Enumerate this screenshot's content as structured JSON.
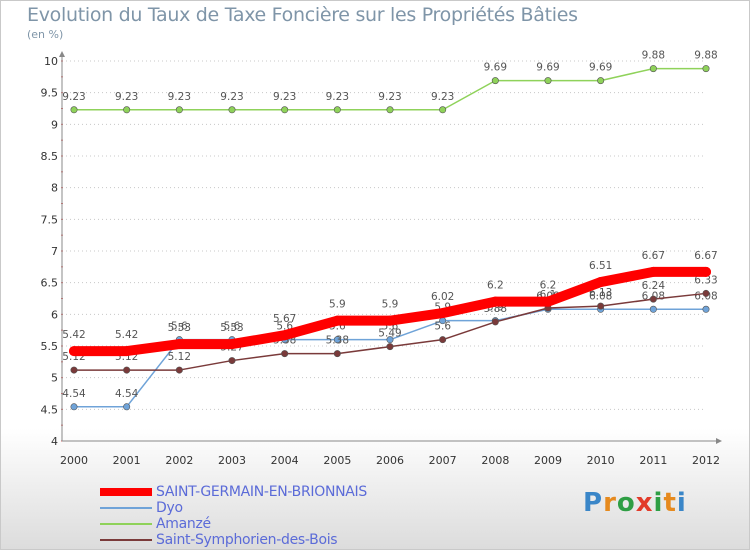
{
  "title": "Evolution du Taux de Taxe Foncière sur les Propriétés Bâties",
  "subtitle": "(en %)",
  "logo": {
    "letters": [
      "P",
      "r",
      "o",
      "x",
      "i",
      "t",
      "i"
    ],
    "colors": [
      "#3a86c8",
      "#e68a1e",
      "#2e9e44",
      "#e23b2a",
      "#2e9e44",
      "#e68a1e",
      "#3a86c8"
    ]
  },
  "chart_data": {
    "type": "line",
    "x": [
      "2000",
      "2001",
      "2002",
      "2003",
      "2004",
      "2005",
      "2006",
      "2007",
      "2008",
      "2009",
      "2010",
      "2011",
      "2012"
    ],
    "ylim": [
      4,
      10
    ],
    "yticks": [
      "4",
      "4.5",
      "5",
      "5.5",
      "6",
      "6.5",
      "7",
      "7.5",
      "8",
      "8.5",
      "9",
      "9.5",
      "10"
    ],
    "grid": "horizontal dotted",
    "legend_position": "bottom-left",
    "series": [
      {
        "name": "Amanzé",
        "color": "#8fd25a",
        "values": [
          9.23,
          9.23,
          9.23,
          9.23,
          9.23,
          9.23,
          9.23,
          9.23,
          9.69,
          9.69,
          9.69,
          9.88,
          9.88
        ],
        "labels": [
          "9.23",
          "9.23",
          "9.23",
          "9.23",
          "9.23",
          "9.23",
          "9.23",
          "9.23",
          "9.69",
          "9.69",
          "9.69",
          "9.88",
          "9.88"
        ]
      },
      {
        "name": "Dyo",
        "color": "#6fa3d8",
        "values": [
          4.54,
          4.54,
          5.6,
          5.6,
          5.6,
          5.6,
          5.6,
          5.9,
          5.9,
          6.08,
          6.08,
          6.08,
          6.08
        ],
        "labels": [
          "4.54",
          "4.54",
          "5.6",
          "5.6",
          "5.6",
          "5.6",
          "5.6",
          "5.9",
          "5.9",
          "6.08",
          "6.08",
          "6.08",
          "6.08"
        ]
      },
      {
        "name": "Saint-Symphorien-des-Bois",
        "color": "#7a3a3a",
        "values": [
          5.12,
          5.12,
          5.12,
          5.27,
          5.38,
          5.38,
          5.49,
          5.6,
          5.88,
          6.1,
          6.13,
          6.24,
          6.33
        ],
        "labels": [
          "5.12",
          "5.12",
          "5.12",
          "5.27",
          "5.38",
          "5.38",
          "5.49",
          "5.6",
          "5.88",
          "6.1",
          "6.13",
          "6.24",
          "6.33"
        ]
      },
      {
        "name": "SAINT-GERMAIN-EN-BRIONNAIS",
        "color": "#ff0000",
        "values": [
          5.42,
          5.42,
          5.53,
          5.53,
          5.67,
          5.9,
          5.9,
          6.02,
          6.2,
          6.2,
          6.51,
          6.67,
          6.67
        ],
        "labels": [
          "5.42",
          "5.42",
          "5.53",
          "5.53",
          "5.67",
          "5.9",
          "5.9",
          "6.02",
          "6.2",
          "6.2",
          "6.51",
          "6.67",
          "6.67"
        ]
      }
    ],
    "legend": [
      {
        "name": "SAINT-GERMAIN-EN-BRIONNAIS",
        "color": "#ff0000",
        "thick": true
      },
      {
        "name": "Dyo",
        "color": "#6fa3d8",
        "thick": false
      },
      {
        "name": "Amanzé",
        "color": "#8fd25a",
        "thick": false
      },
      {
        "name": "Saint-Symphorien-des-Bois",
        "color": "#7a3a3a",
        "thick": false
      }
    ]
  }
}
